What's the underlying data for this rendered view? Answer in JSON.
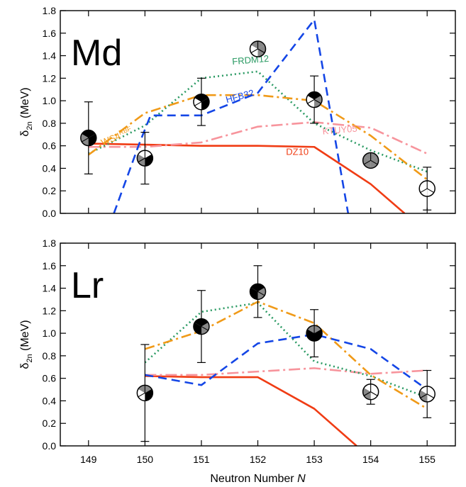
{
  "chart_data": [
    {
      "type": "line",
      "panel_label": "Md",
      "ylabel_main": "δ",
      "ylabel_sub": "2n",
      "ylabel_unit": " (MeV)",
      "ylim": [
        0,
        1.8
      ],
      "yticks": [
        0.0,
        0.2,
        0.4,
        0.6,
        0.8,
        1.0,
        1.2,
        1.4,
        1.6,
        1.8
      ],
      "ytick_labels": [
        "0.0",
        "0.2",
        "0.4",
        "0.6",
        "0.8",
        "1.0",
        "1.2",
        "1.4",
        "1.6",
        "1.8"
      ],
      "xlim": [
        148.5,
        155.5
      ],
      "xticks": [
        149,
        150,
        151,
        152,
        153,
        154,
        155
      ],
      "grid": false,
      "series": [
        {
          "name": "DZ10",
          "color": "#f03c14",
          "dash": "",
          "width": 2.6,
          "x": [
            149,
            150,
            151,
            152,
            153,
            154,
            154.6
          ],
          "y": [
            0.62,
            0.61,
            0.6,
            0.6,
            0.59,
            0.26,
            0.0
          ],
          "label_text": "DZ10",
          "label_at": [
            152.5,
            0.52
          ],
          "label_rotate": 0
        },
        {
          "name": "KTUY05",
          "color": "#f7949c",
          "dash": "16,5,3,5",
          "width": 2.6,
          "x": [
            149,
            150,
            151,
            152,
            153,
            154,
            155
          ],
          "y": [
            0.59,
            0.59,
            0.63,
            0.77,
            0.81,
            0.76,
            0.53
          ],
          "label_text": "KTUY05",
          "label_at": [
            153.15,
            0.7
          ],
          "label_rotate": -5
        },
        {
          "name": "FRDM12",
          "color": "#2a9a63",
          "dash": "2,4",
          "width": 2.6,
          "x": [
            149,
            150,
            151,
            152,
            153,
            154,
            155
          ],
          "y": [
            0.53,
            0.78,
            1.2,
            1.26,
            0.8,
            0.56,
            0.37
          ],
          "label_text": "FRDM12",
          "label_at": [
            151.55,
            1.32
          ],
          "label_rotate": -5
        },
        {
          "name": "WS4RBF",
          "color": "#f09a18",
          "dash": "14,5,3,5",
          "width": 2.6,
          "x": [
            149,
            150,
            151,
            152,
            153,
            154,
            155
          ],
          "y": [
            0.52,
            0.89,
            1.05,
            1.05,
            1.0,
            0.69,
            0.3
          ],
          "label_text": "WS4",
          "label_sup": "RBF",
          "label_at": [
            149.25,
            0.6
          ],
          "label_rotate": -22
        },
        {
          "name": "HFB32",
          "color": "#1446e6",
          "dash": "12,7",
          "width": 2.6,
          "x": [
            149.45,
            149.9,
            150.1,
            151,
            152,
            153,
            153.6
          ],
          "y": [
            0.0,
            0.62,
            0.87,
            0.87,
            1.07,
            1.72,
            0.0
          ],
          "label_text": "HFB32",
          "label_at": [
            151.45,
            0.98
          ],
          "label_rotate": -15
        }
      ],
      "experimental": {
        "x": [
          149,
          150,
          151,
          152,
          153,
          154,
          155
        ],
        "y": [
          0.67,
          0.49,
          0.99,
          1.46,
          1.01,
          0.47,
          0.22
        ],
        "yerr": [
          0.32,
          0.23,
          0.21,
          null,
          0.21,
          null,
          0.19
        ],
        "marker_fill": [
          [
            "#000",
            "#000",
            "#888"
          ],
          [
            "#fff",
            "#000",
            "#888"
          ],
          [
            "#000",
            "#000",
            "#fff"
          ],
          [
            "#888",
            "#888",
            "#fff"
          ],
          [
            "#000",
            "#888",
            "#fff"
          ],
          [
            "#888",
            "#888",
            "#888"
          ],
          [
            "#fff",
            "#fff",
            "#fff"
          ]
        ]
      }
    },
    {
      "type": "line",
      "panel_label": "Lr",
      "xlabel": "Neutron Number ",
      "xlabel_italic": "N",
      "ylabel_main": "δ",
      "ylabel_sub": "2n",
      "ylabel_unit": " (MeV)",
      "ylim": [
        0,
        1.8
      ],
      "yticks": [
        0.0,
        0.2,
        0.4,
        0.6,
        0.8,
        1.0,
        1.2,
        1.4,
        1.6,
        1.8
      ],
      "ytick_labels": [
        "0.0",
        "0.2",
        "0.4",
        "0.6",
        "0.8",
        "1.0",
        "1.2",
        "1.4",
        "1.6",
        "1.8"
      ],
      "xlim": [
        148.5,
        155.5
      ],
      "xticks": [
        149,
        150,
        151,
        152,
        153,
        154,
        155
      ],
      "xtick_labels": [
        "149",
        "150",
        "151",
        "152",
        "153",
        "154",
        "155"
      ],
      "grid": false,
      "series": [
        {
          "name": "DZ10",
          "color": "#f03c14",
          "dash": "",
          "width": 2.6,
          "x": [
            150,
            151,
            152,
            153,
            153.75
          ],
          "y": [
            0.62,
            0.61,
            0.61,
            0.33,
            0.0
          ]
        },
        {
          "name": "KTUY05",
          "color": "#f7949c",
          "dash": "16,5,3,5",
          "width": 2.6,
          "x": [
            150,
            151,
            152,
            153,
            154,
            155
          ],
          "y": [
            0.63,
            0.63,
            0.66,
            0.69,
            0.64,
            0.67
          ]
        },
        {
          "name": "FRDM12",
          "color": "#2a9a63",
          "dash": "2,4",
          "width": 2.6,
          "x": [
            150,
            151,
            152,
            153,
            154,
            155
          ],
          "y": [
            0.74,
            1.19,
            1.27,
            0.75,
            0.62,
            0.43
          ]
        },
        {
          "name": "WS4RBF",
          "color": "#f09a18",
          "dash": "14,5,3,5",
          "width": 2.6,
          "x": [
            150,
            151,
            152,
            153,
            154,
            155
          ],
          "y": [
            0.86,
            1.02,
            1.28,
            1.09,
            0.63,
            0.33
          ]
        },
        {
          "name": "HFB32",
          "color": "#1446e6",
          "dash": "12,7",
          "width": 2.6,
          "x": [
            150,
            151,
            152,
            153,
            154,
            155
          ],
          "y": [
            0.63,
            0.54,
            0.91,
            0.99,
            0.86,
            0.5
          ]
        }
      ],
      "experimental": {
        "x": [
          150,
          151,
          152,
          153,
          154,
          155
        ],
        "y": [
          0.47,
          1.06,
          1.37,
          1.0,
          0.48,
          0.46
        ],
        "yerr": [
          0.43,
          0.32,
          0.23,
          0.21,
          0.11,
          0.21
        ],
        "marker_fill": [
          [
            "#888",
            "#000",
            "#fff"
          ],
          [
            "#000",
            "#888",
            "#000"
          ],
          [
            "#000",
            "#888",
            "#000"
          ],
          [
            "#888",
            "#000",
            "#000"
          ],
          [
            "#fff",
            "#fff",
            "#888"
          ],
          [
            "#fff",
            "#fff",
            "#888"
          ]
        ]
      }
    }
  ]
}
